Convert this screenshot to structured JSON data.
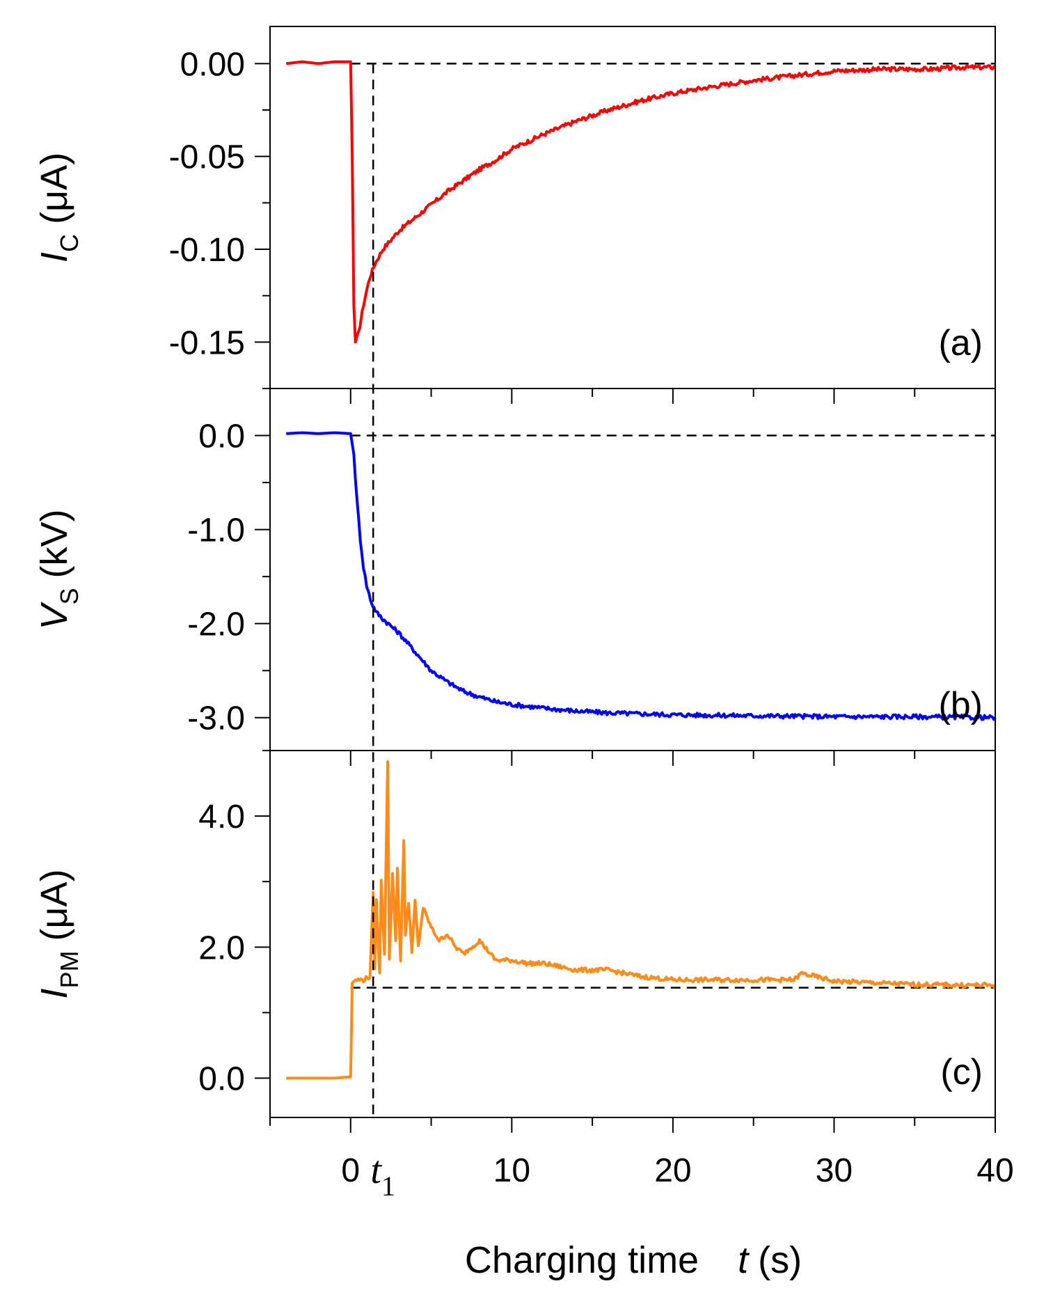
{
  "chart_data": {
    "type": "line",
    "x_axis": {
      "label": "Charging time",
      "symbol": "t",
      "unit": "(s)",
      "range": [
        -5,
        40
      ],
      "ticks": [
        0,
        10,
        20,
        30,
        40
      ],
      "tick_labels": [
        "0",
        "10",
        "20",
        "30",
        "40"
      ],
      "minor_step": 5
    },
    "marker": {
      "label_base": "t",
      "label_sub": "1",
      "x": 1.4
    },
    "panels": [
      {
        "id": "a",
        "panel_label": "(a)",
        "ylabel_symbol": "I",
        "ylabel_sub": "C",
        "ylabel_unit": "(μA)",
        "ylim": [
          -0.175,
          0.02
        ],
        "yticks": [
          0.0,
          -0.05,
          -0.1,
          -0.15
        ],
        "ytick_labels": [
          "0.00",
          "-0.05",
          "-0.10",
          "-0.15"
        ],
        "minor_step": 0.025,
        "baseline": 0.0,
        "color": "#ff0000",
        "series": {
          "name": "I_C",
          "x": [
            -4,
            -3,
            -2,
            -1,
            0,
            0.1,
            0.2,
            0.3,
            0.5,
            0.8,
            1.0,
            1.2,
            1.5,
            2,
            3,
            4,
            5,
            6,
            7,
            8,
            9,
            10,
            12,
            14,
            16,
            18,
            20,
            22,
            25,
            28,
            30,
            33,
            36,
            38,
            40
          ],
          "y": [
            0.0,
            0.001,
            0.0,
            0.001,
            0.001,
            -0.05,
            -0.13,
            -0.15,
            -0.145,
            -0.13,
            -0.122,
            -0.115,
            -0.108,
            -0.1,
            -0.09,
            -0.083,
            -0.076,
            -0.069,
            -0.063,
            -0.057,
            -0.052,
            -0.046,
            -0.038,
            -0.031,
            -0.025,
            -0.02,
            -0.016,
            -0.013,
            -0.009,
            -0.006,
            -0.004,
            -0.003,
            -0.003,
            -0.002,
            -0.002
          ]
        }
      },
      {
        "id": "b",
        "panel_label": "(b)",
        "ylabel_symbol": "V",
        "ylabel_sub": "S",
        "ylabel_unit": "(kV)",
        "ylim": [
          -3.35,
          0.5
        ],
        "yticks": [
          0.0,
          -1.0,
          -2.0,
          -3.0
        ],
        "ytick_labels": [
          "0.0",
          "-1.0",
          "-2.0",
          "-3.0"
        ],
        "minor_step": 0.5,
        "baseline": 0.0,
        "color": "#0000ff",
        "series": {
          "name": "V_S",
          "x": [
            -4,
            -3,
            -2,
            -1,
            0,
            0.2,
            0.4,
            0.6,
            0.8,
            1.0,
            1.3,
            1.6,
            2,
            3,
            4,
            5,
            6,
            7,
            8,
            9,
            10,
            12,
            14,
            16,
            18,
            20,
            25,
            30,
            35,
            40
          ],
          "y": [
            0.02,
            0.03,
            0.02,
            0.03,
            0.02,
            -0.2,
            -0.7,
            -1.1,
            -1.4,
            -1.6,
            -1.78,
            -1.88,
            -1.95,
            -2.1,
            -2.3,
            -2.5,
            -2.62,
            -2.72,
            -2.78,
            -2.83,
            -2.86,
            -2.9,
            -2.93,
            -2.95,
            -2.96,
            -2.97,
            -2.98,
            -2.99,
            -2.99,
            -3.0
          ]
        }
      },
      {
        "id": "c",
        "panel_label": "(c)",
        "ylabel_symbol": "I",
        "ylabel_sub": "PM",
        "ylabel_unit": "(μA)",
        "ylim": [
          -0.6,
          5.0
        ],
        "yticks": [
          0.0,
          2.0,
          4.0
        ],
        "ytick_labels": [
          "0.0",
          "2.0",
          "4.0"
        ],
        "minor_step": 1.0,
        "baseline": 1.38,
        "color": "#ff8c1a",
        "series": {
          "name": "I_PM",
          "x": [
            -4,
            -3,
            -2,
            -1,
            0,
            0.1,
            0.3,
            0.8,
            1.2,
            1.4,
            1.5,
            1.6,
            1.8,
            1.9,
            2.1,
            2.3,
            2.4,
            2.6,
            2.8,
            2.9,
            3.1,
            3.3,
            3.4,
            3.6,
            3.8,
            4.0,
            4.2,
            4.5,
            5,
            5.5,
            6,
            6.5,
            7,
            8,
            9,
            10,
            11,
            12,
            13,
            14,
            16,
            18,
            20,
            22,
            25,
            27.5,
            28,
            30,
            33,
            35,
            38,
            40
          ],
          "y": [
            0.0,
            0.0,
            0.0,
            0.0,
            0.02,
            1.45,
            1.5,
            1.5,
            1.55,
            2.8,
            1.7,
            2.7,
            1.6,
            3.0,
            1.9,
            4.85,
            1.8,
            3.1,
            2.1,
            3.2,
            1.8,
            3.6,
            2.2,
            2.7,
            1.9,
            2.7,
            2.0,
            2.6,
            2.3,
            2.1,
            2.2,
            2.0,
            1.9,
            2.1,
            1.8,
            1.8,
            1.75,
            1.75,
            1.7,
            1.65,
            1.65,
            1.55,
            1.5,
            1.5,
            1.5,
            1.5,
            1.6,
            1.48,
            1.45,
            1.43,
            1.42,
            1.42
          ]
        }
      }
    ]
  }
}
